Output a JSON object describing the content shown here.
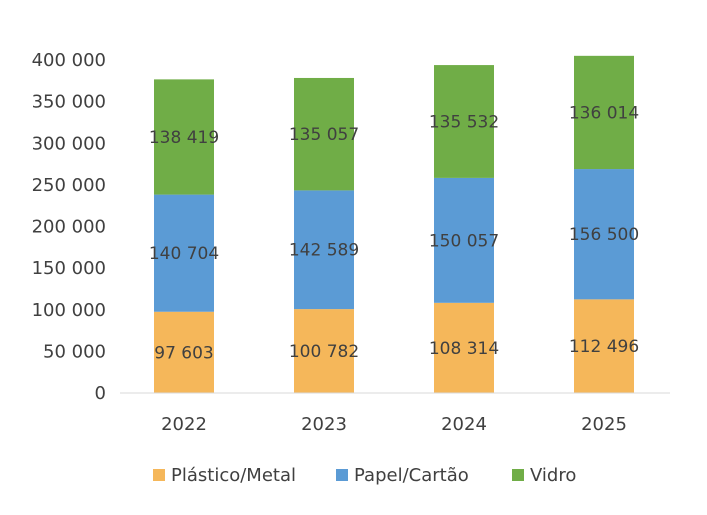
{
  "chart_data": {
    "type": "bar",
    "stacked": true,
    "categories": [
      "2022",
      "2023",
      "2024",
      "2025"
    ],
    "series": [
      {
        "name": "Plástico/Metal",
        "color": "#F5B75A",
        "values": [
          97603,
          100782,
          108314,
          112496
        ],
        "labels": [
          "97 603",
          "100 782",
          "108 314",
          "112 496"
        ]
      },
      {
        "name": "Papel/Cartão",
        "color": "#5B9BD5",
        "values": [
          140704,
          142589,
          150057,
          156500
        ],
        "labels": [
          "140 704",
          "142 589",
          "150 057",
          "156 500"
        ]
      },
      {
        "name": "Vidro",
        "color": "#70AD47",
        "values": [
          138419,
          135057,
          135532,
          136014
        ],
        "labels": [
          "138 419",
          "135 057",
          "135 532",
          "136 014"
        ]
      }
    ],
    "ylim": [
      0,
      400000
    ],
    "yticks": [
      0,
      50000,
      100000,
      150000,
      200000,
      250000,
      300000,
      350000,
      400000
    ],
    "ytick_labels": [
      "0",
      "50 000",
      "100 000",
      "150 000",
      "200 000",
      "250 000",
      "300 000",
      "350 000",
      "400 000"
    ],
    "grid": false,
    "legend_position": "bottom"
  }
}
